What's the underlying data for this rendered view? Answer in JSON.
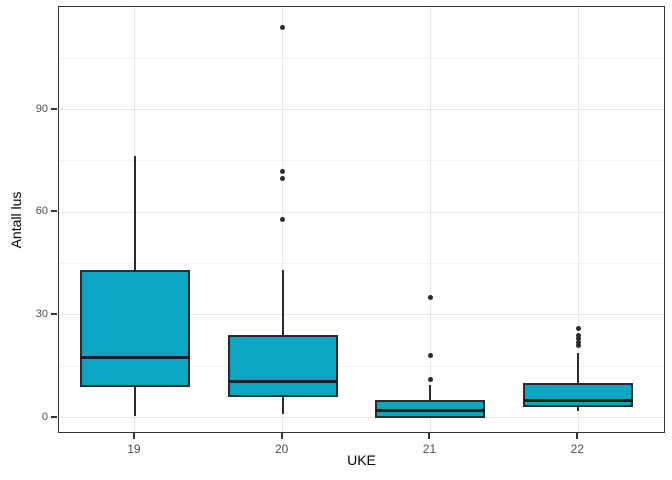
{
  "figure": {
    "background": "#ffffff",
    "panel_border_color": "#333333",
    "grid_major_color": "#e7e7e7",
    "grid_minor_color": "#f3f3f3",
    "tick_label_color": "#4d4d4d",
    "axis_title_color": "#000000"
  },
  "chart_data": {
    "type": "boxplot",
    "title": "",
    "xlabel": "UKE",
    "ylabel": "Antall lus",
    "categories": [
      "19",
      "20",
      "21",
      "22"
    ],
    "y_ticks": [
      0,
      30,
      60,
      90
    ],
    "y_minor_ticks": [
      15,
      45,
      75,
      105
    ],
    "ylim": [
      -4.8,
      120
    ],
    "grid": true,
    "legend": "none",
    "box_fill": "#0ba7c2",
    "box_stroke": "#2b2b2b",
    "outlier_color": "#2b2b2b",
    "series": [
      {
        "category": "19",
        "whisker_low": 0.5,
        "q1": 9,
        "median": 17.5,
        "q3": 43,
        "whisker_high": 76.5,
        "outliers": []
      },
      {
        "category": "20",
        "whisker_low": 1,
        "q1": 6,
        "median": 10.5,
        "q3": 24,
        "whisker_high": 43,
        "outliers": [
          58,
          70,
          72,
          114
        ]
      },
      {
        "category": "21",
        "whisker_low": 0,
        "q1": 0,
        "median": 2,
        "q3": 5,
        "whisker_high": 9.5,
        "outliers": [
          11,
          18,
          35
        ]
      },
      {
        "category": "22",
        "whisker_low": 2,
        "q1": 3,
        "median": 5,
        "q3": 10,
        "whisker_high": 19,
        "outliers": [
          21,
          22,
          23,
          24,
          26
        ]
      }
    ]
  }
}
